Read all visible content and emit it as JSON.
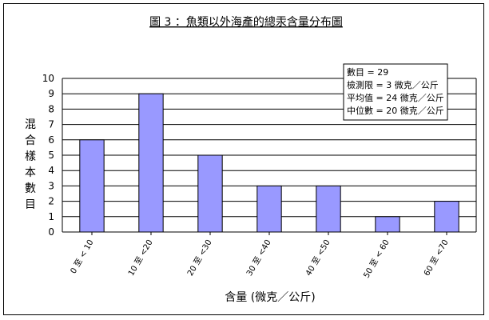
{
  "chart_data": {
    "type": "bar",
    "title": "圖 3 ：魚類以外海產的總汞含量分布圖",
    "xlabel": "含量 (微克／公斤)",
    "ylabel": "混合樣本數目",
    "categories": [
      "0 至 < 10",
      "10 至 <20",
      "20 至 <30",
      "30 至 <40",
      "40 至 <50",
      "50 至 < 60",
      "60 至 <70"
    ],
    "values": [
      6,
      9,
      5,
      3,
      3,
      1,
      2
    ],
    "ylim": [
      0,
      10
    ],
    "yticks": [
      0,
      1,
      2,
      3,
      4,
      5,
      6,
      7,
      8,
      9,
      10
    ],
    "grid": true,
    "legend": "none",
    "bar_color": "#9999ff",
    "annotation": {
      "lines": [
        "數目 = 29",
        "檢測限 = 3 微克／公斤",
        "平均值 = 24 微克／公斤",
        "中位數 = 20 微克／公斤"
      ],
      "placement": "top-right"
    }
  }
}
